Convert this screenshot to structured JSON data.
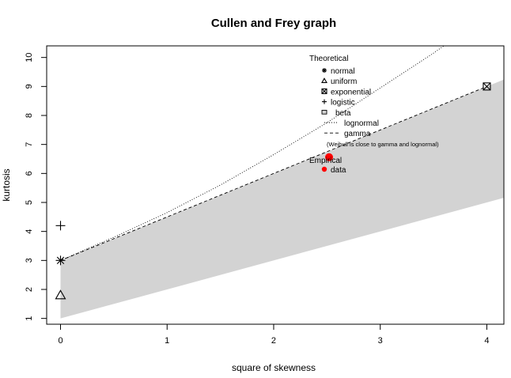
{
  "chart_data": {
    "type": "scatter",
    "title": "Cullen and Frey graph",
    "xlabel": "square of skewness",
    "ylabel": "kurtosis",
    "xlim": [
      -0.13,
      4.16
    ],
    "ylim": [
      10.4,
      0.8
    ],
    "y_reversed": true,
    "x_ticks": [
      0,
      1,
      2,
      3,
      4
    ],
    "y_ticks": [
      1,
      2,
      3,
      4,
      5,
      6,
      7,
      8,
      9,
      10
    ],
    "grid": false,
    "beta_region": {
      "upper": [
        [
          0,
          1
        ],
        [
          4.16,
          5.16
        ]
      ],
      "lower": [
        [
          0,
          3
        ],
        [
          4.16,
          9.24
        ]
      ],
      "color": "#d3d3d3"
    },
    "gamma_line": [
      [
        0,
        3
      ],
      [
        4,
        9
      ]
    ],
    "lognormal_line": [
      [
        0,
        3
      ],
      [
        0.5,
        3.8
      ],
      [
        1,
        4.65
      ],
      [
        1.5,
        5.6
      ],
      [
        2,
        6.65
      ],
      [
        2.5,
        7.75
      ],
      [
        3,
        8.95
      ],
      [
        3.5,
        10.15
      ],
      [
        3.75,
        10.8
      ]
    ],
    "theoretical_points": [
      {
        "name": "normal",
        "x": 0,
        "y": 3,
        "symbol": "asterisk"
      },
      {
        "name": "uniform",
        "x": 0,
        "y": 1.8,
        "symbol": "triangle"
      },
      {
        "name": "exponential",
        "x": 4,
        "y": 9,
        "symbol": "boxed-x"
      },
      {
        "name": "logistic",
        "x": 0,
        "y": 4.2,
        "symbol": "plus"
      }
    ],
    "empirical_points": [
      {
        "name": "data",
        "x": 2.52,
        "y": 6.56,
        "color": "#ff0000"
      }
    ],
    "legend": {
      "placement": "top-right",
      "theoretical_title": "Theoretical",
      "items": [
        {
          "label": "normal",
          "symbol": "asterisk"
        },
        {
          "label": "uniform",
          "symbol": "triangle"
        },
        {
          "label": "exponential",
          "symbol": "boxed-x"
        },
        {
          "label": "logistic",
          "symbol": "plus"
        },
        {
          "label": "beta",
          "symbol": "box"
        },
        {
          "label": "lognormal",
          "symbol": "dotted"
        },
        {
          "label": "gamma",
          "symbol": "dashed"
        }
      ],
      "note": "(Weibull is close to gamma and lognormal)",
      "empirical_title": "Empirical",
      "empirical_items": [
        {
          "label": "data",
          "symbol": "dot"
        }
      ]
    }
  }
}
